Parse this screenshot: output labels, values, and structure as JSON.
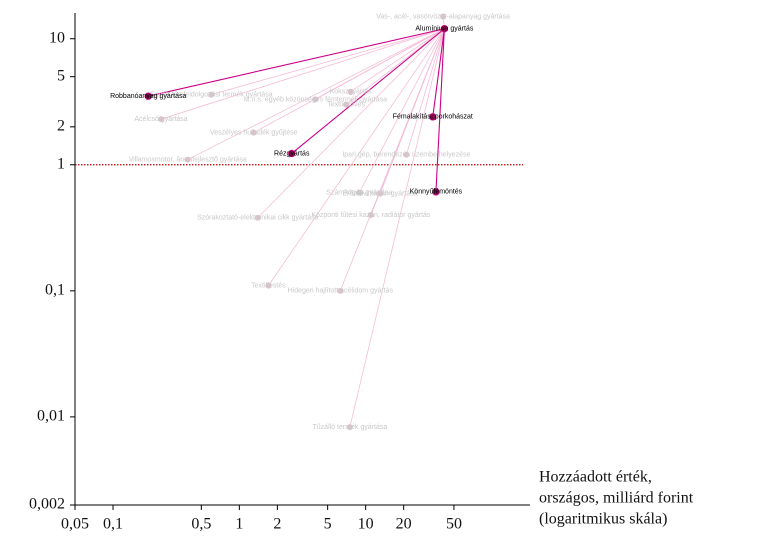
{
  "chart_data": {
    "type": "hub-scatter",
    "log_x": true,
    "log_y": true,
    "xlim": [
      0.05,
      200
    ],
    "ylim": [
      0.002,
      16
    ],
    "xticks": [
      {
        "value": 0.05,
        "label": "0,05"
      },
      {
        "value": 0.1,
        "label": "0,1"
      },
      {
        "value": 0.5,
        "label": "0,5"
      },
      1,
      2,
      5,
      10,
      20,
      50
    ],
    "yticks": [
      {
        "value": 0.002,
        "label": "0,002"
      },
      {
        "value": 0.01,
        "label": "0,01"
      },
      {
        "value": 0.1,
        "label": "0,1"
      },
      1,
      2,
      5,
      10
    ],
    "xlabel": [
      "Hozzáadott érték,",
      "országos, milliárd forint",
      "(logaritmikus skála)"
    ],
    "reference_line": 1,
    "reference_color": "#c00000",
    "hub": {
      "label": "Alumínium gyártás",
      "x": 42,
      "y": 12
    },
    "highlight_color": "#cc0088",
    "highlight_fill": "#7a1040",
    "faded_color": "#f5bcd8",
    "faded_fill": "#dcc4cc",
    "points": [
      {
        "label": "Robbanóanyag gyártása",
        "x": 0.19,
        "y": 3.5,
        "highlight": true
      },
      {
        "label": "Fémalakítás, porkohászat",
        "x": 34,
        "y": 2.4,
        "highlight": true
      },
      {
        "label": "Rézgyártás",
        "x": 2.6,
        "y": 1.23,
        "highlight": true
      },
      {
        "label": "Könnyűfémöntés",
        "x": 36,
        "y": 0.61,
        "highlight": true
      },
      {
        "label": "Vas-, acél-, vasötvözet-alapanyag gyártása",
        "x": 41,
        "y": 15,
        "highlight": false
      },
      {
        "label": "Egyéb fémfeldolgozási termék gyártása",
        "x": 0.6,
        "y": 3.6,
        "highlight": false
      },
      {
        "label": "M.n.s. egyéb közönséges fémtermék gyártása",
        "x": 4,
        "y": 3.3,
        "highlight": false
      },
      {
        "label": "Kokszgyártás",
        "x": 7.6,
        "y": 3.8,
        "highlight": false
      },
      {
        "label": "Textilszövés",
        "x": 7,
        "y": 3.0,
        "highlight": false
      },
      {
        "label": "Acélcső gyártása",
        "x": 0.24,
        "y": 2.3,
        "highlight": false
      },
      {
        "label": "Veszélyes hulladék gyűjtése",
        "x": 1.3,
        "y": 1.8,
        "highlight": false
      },
      {
        "label": "Ipari gép, berendezés üzembe helyezése",
        "x": 21,
        "y": 1.2,
        "highlight": false
      },
      {
        "label": "Villamosmotor, áramfejlesztő gyártása",
        "x": 0.39,
        "y": 1.1,
        "highlight": false
      },
      {
        "label": "Számítógép gyártása",
        "x": 8.9,
        "y": 0.6,
        "highlight": false
      },
      {
        "label": "Erőművi kazán gyártása",
        "x": 13,
        "y": 0.59,
        "highlight": false
      },
      {
        "label": "Szórakoztató-elektronikai cikk gyártása",
        "x": 1.4,
        "y": 0.38,
        "highlight": false
      },
      {
        "label": "Központi fűtési kazán, radiátor gyártás",
        "x": 11,
        "y": 0.4,
        "highlight": false
      },
      {
        "label": "Textilfestés",
        "x": 1.7,
        "y": 0.11,
        "highlight": false
      },
      {
        "label": "Hidegen hajlított acélidom gyártás",
        "x": 6.3,
        "y": 0.1,
        "highlight": false
      },
      {
        "label": "Tűzálló termék gyártása",
        "x": 7.5,
        "y": 0.0083,
        "highlight": false
      }
    ]
  }
}
